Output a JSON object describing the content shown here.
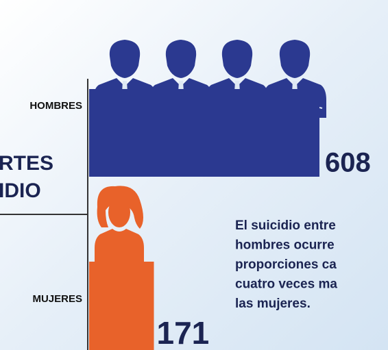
{
  "chart_data": {
    "type": "bar",
    "orientation": "horizontal",
    "categories": [
      "HOMBRES",
      "MUJERES"
    ],
    "values": [
      608,
      171
    ],
    "colors": [
      "#2b3990",
      "#e8622a"
    ],
    "title_fragments": [
      "RTES",
      "IDIO"
    ],
    "annotation": [
      "El suicidio entre",
      "hombres ocurre",
      "proporciones ca",
      "cuatro veces ma",
      "las mujeres."
    ]
  }
}
